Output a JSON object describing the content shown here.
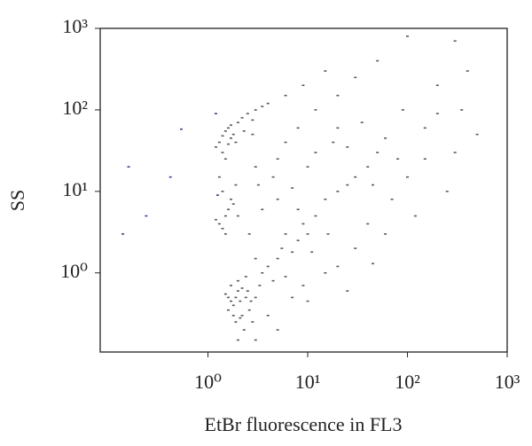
{
  "chart_data": {
    "type": "scatter",
    "x_label": "EtBr fluorescence in FL3",
    "y_label": "SS",
    "xscale": "log",
    "yscale": "log",
    "xlim": [
      0.083,
      1000
    ],
    "ylim": [
      0.107,
      1000
    ],
    "xticks": [
      {
        "value": 1,
        "label": "10⁰"
      },
      {
        "value": 10,
        "label": "10¹"
      },
      {
        "value": 100,
        "label": "10²"
      },
      {
        "value": 1000,
        "label": "10³"
      }
    ],
    "yticks": [
      {
        "value": 1,
        "label": "10⁰"
      },
      {
        "value": 10,
        "label": "10¹"
      },
      {
        "value": 100,
        "label": "10²"
      },
      {
        "value": 1000,
        "label": "10³"
      }
    ],
    "series": [
      {
        "color": "#5a5a5a",
        "x": [
          1.6,
          1.8,
          2.0,
          2.2,
          1.9,
          2.4,
          1.7,
          2.1,
          2.6,
          1.5,
          2.3,
          1.8,
          2.0,
          2.5,
          1.9,
          2.7,
          2.2,
          1.6,
          3.0,
          2.8,
          2.0,
          2.4,
          3.3,
          1.7,
          2.1,
          1.3,
          1.5,
          1.7,
          1.4,
          1.6,
          1.8,
          2.0,
          1.2,
          1.5,
          1.9,
          2.2,
          2.5,
          3.0,
          3.5,
          1.7,
          1.4,
          2.8,
          4.0,
          2.3,
          1.6,
          1.3,
          1.5,
          1.4,
          1.6,
          1.2,
          1.8,
          1.5,
          1.7,
          1.4,
          1.9,
          1.3,
          2.0,
          4,
          5,
          6,
          5.5,
          7,
          3.5,
          4.5,
          8,
          3,
          6,
          10,
          12,
          8,
          15,
          20,
          25,
          30,
          10,
          5,
          6,
          8,
          12,
          18,
          40,
          50,
          60,
          80,
          100,
          150,
          200,
          300,
          250,
          120,
          70,
          40,
          30,
          20,
          15,
          9,
          7,
          4,
          5,
          3,
          12,
          20,
          30,
          50,
          100,
          300,
          20,
          25,
          35,
          45,
          16,
          11,
          9,
          7,
          5,
          3.5,
          3,
          4.5,
          6,
          9,
          15,
          200,
          400,
          500,
          350,
          2.6,
          3.2,
          2.8,
          90,
          150,
          60,
          25,
          10,
          45
        ],
        "y": [
          0.5,
          0.4,
          0.6,
          0.3,
          0.25,
          0.5,
          0.7,
          0.45,
          0.35,
          0.55,
          0.2,
          0.3,
          0.8,
          0.6,
          0.5,
          0.45,
          0.65,
          0.35,
          0.5,
          0.25,
          0.15,
          0.9,
          0.7,
          0.45,
          0.28,
          40,
          55,
          45,
          30,
          60,
          50,
          70,
          35,
          25,
          40,
          80,
          90,
          100,
          110,
          65,
          48,
          75,
          120,
          55,
          38,
          4,
          5,
          3.5,
          6,
          4.5,
          7,
          3,
          8,
          10,
          12,
          15,
          5,
          1.2,
          1.5,
          0.9,
          2,
          1.8,
          1,
          0.8,
          2.5,
          1.5,
          3,
          3,
          5,
          6,
          8,
          10,
          12,
          15,
          20,
          25,
          40,
          60,
          30,
          40,
          20,
          30,
          45,
          25,
          15,
          60,
          90,
          30,
          10,
          5,
          8,
          4,
          2,
          1.2,
          1,
          0.7,
          0.5,
          0.3,
          0.2,
          0.15,
          100,
          150,
          250,
          400,
          800,
          700,
          60,
          35,
          70,
          12,
          3,
          1.8,
          4,
          11,
          8,
          6,
          20,
          15,
          150,
          200,
          300,
          200,
          300,
          50,
          100,
          3,
          12,
          50,
          100,
          25,
          3,
          0.6,
          0.45,
          1.3
        ]
      },
      {
        "color": "#3b3bb5",
        "x": [
          0.14,
          0.16,
          0.42,
          0.54,
          0.24,
          1.2,
          1.25
        ],
        "y": [
          3,
          20,
          15,
          58,
          5,
          90,
          9
        ]
      }
    ]
  }
}
